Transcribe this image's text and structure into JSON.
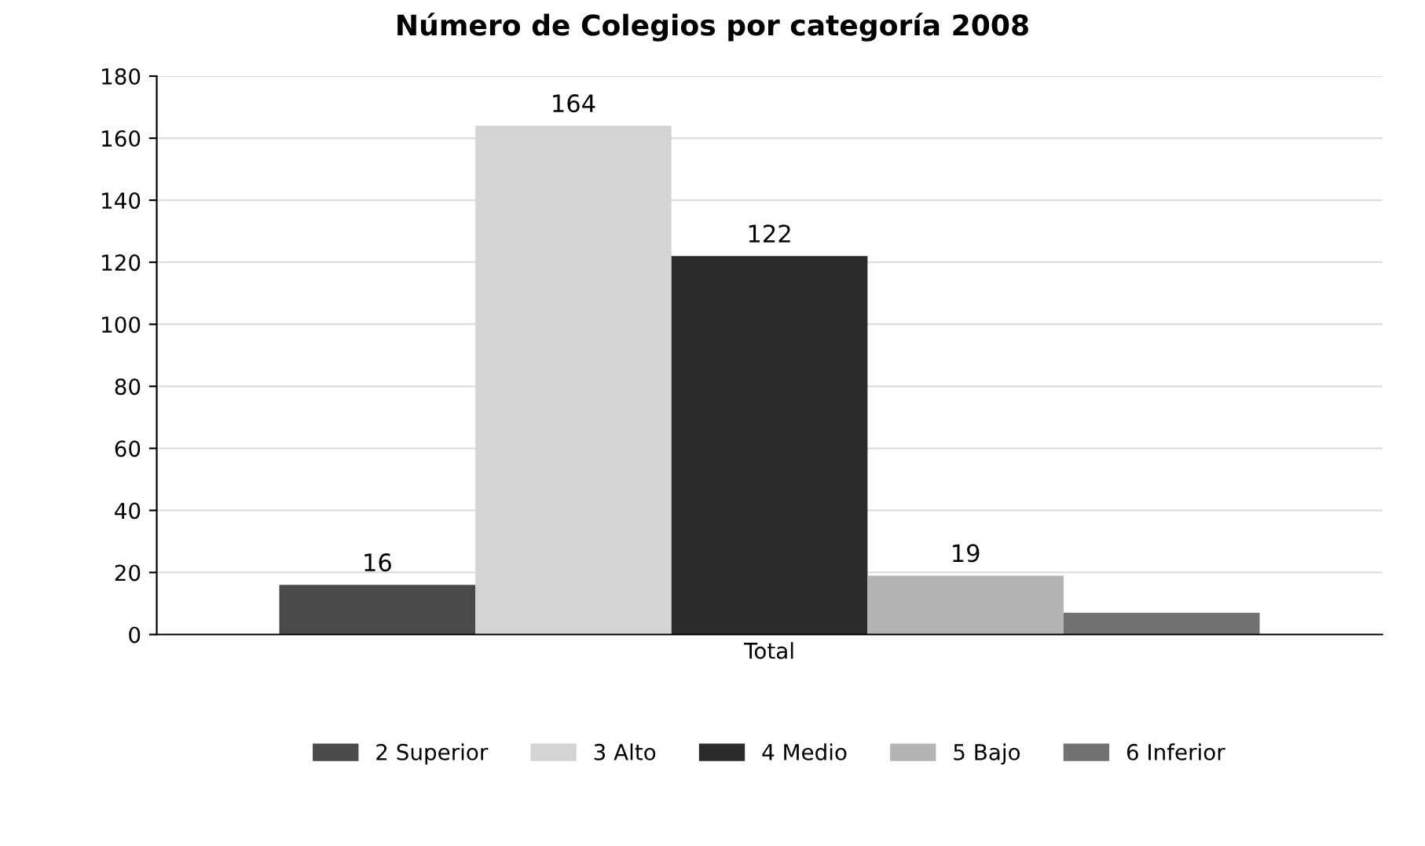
{
  "chart_data": {
    "type": "bar",
    "title": "Número de Colegios por categoría 2008",
    "categories": [
      "Total"
    ],
    "series": [
      {
        "name": "2 Superior",
        "color": "#4a4a4a",
        "values": [
          16
        ],
        "value_labels": [
          "16"
        ]
      },
      {
        "name": "3 Alto",
        "color": "#d4d4d4",
        "values": [
          164
        ],
        "value_labels": [
          "164"
        ]
      },
      {
        "name": "4 Medio",
        "color": "#2b2b2b",
        "values": [
          122
        ],
        "value_labels": [
          "122"
        ]
      },
      {
        "name": "5 Bajo",
        "color": "#b4b4b4",
        "values": [
          19
        ],
        "value_labels": [
          "19"
        ]
      },
      {
        "name": "6 Inferior",
        "color": "#727272",
        "values": [
          7
        ],
        "value_labels": [
          null
        ]
      }
    ],
    "ylim": [
      0,
      180
    ],
    "yticks": [
      0,
      20,
      40,
      60,
      80,
      100,
      120,
      140,
      160,
      180
    ],
    "grid": "y",
    "legend": "bottom"
  }
}
